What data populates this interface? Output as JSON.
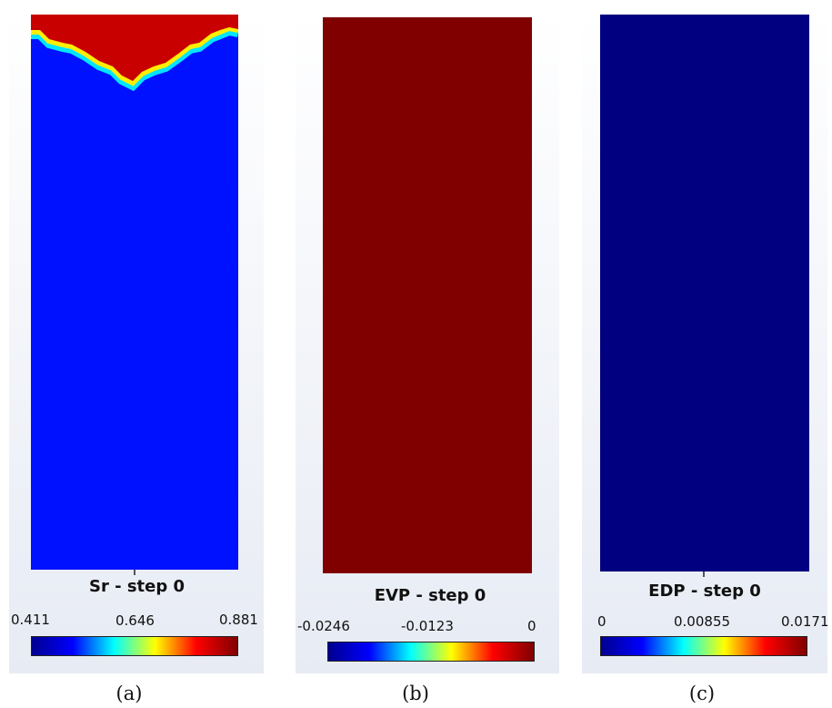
{
  "colors": {
    "jet_stops": [
      "#00008f",
      "#0000ff",
      "#00ffff",
      "#ffff00",
      "#ff0000",
      "#800000"
    ],
    "panel_a_low": "#0011ff",
    "panel_a_high": "#c80000",
    "panel_b_fill": "#800000",
    "panel_c_fill": "#000080"
  },
  "panels": [
    {
      "title": "Sr - step 0",
      "ticks": [
        "0.411",
        "0.646",
        "0.881"
      ],
      "caption": "(a)"
    },
    {
      "title": "EVP - step 0",
      "ticks": [
        "-0.0246",
        "-0.0123",
        "0"
      ],
      "caption": "(b)"
    },
    {
      "title": "EDP - step 0",
      "ticks": [
        "0",
        "0.00855",
        "0.0171"
      ],
      "caption": "(c)"
    }
  ]
}
